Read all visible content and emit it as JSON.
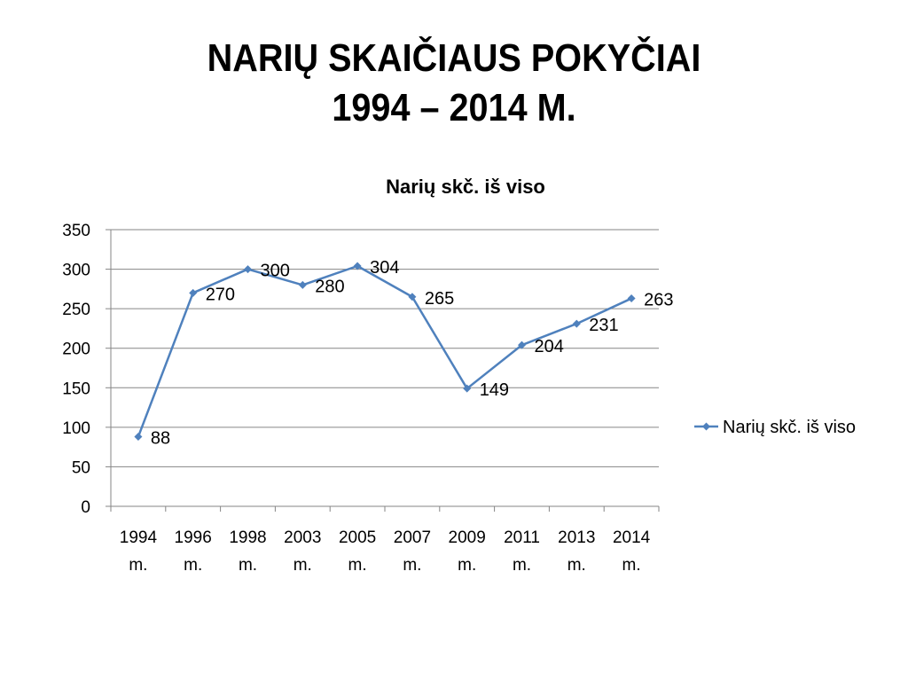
{
  "slide": {
    "title_line1": "NARIŲ SKAIČIAUS POKYČIAI",
    "title_line2": "1994 – 2014 M."
  },
  "chart_data": {
    "type": "line",
    "title": "Narių skč. iš viso",
    "categories": [
      [
        "1994",
        "m."
      ],
      [
        "1996",
        "m."
      ],
      [
        "1998",
        "m."
      ],
      [
        "2003",
        "m."
      ],
      [
        "2005",
        "m."
      ],
      [
        "2007",
        "m."
      ],
      [
        "2009",
        "m."
      ],
      [
        "2011",
        "m."
      ],
      [
        "2013",
        "m."
      ],
      [
        "2014",
        "m."
      ]
    ],
    "series": [
      {
        "name": "Narių skč. iš viso",
        "values": [
          88,
          270,
          300,
          280,
          304,
          265,
          149,
          204,
          231,
          263
        ]
      }
    ],
    "ylim": [
      0,
      350
    ],
    "yticks": [
      0,
      50,
      100,
      150,
      200,
      250,
      300,
      350
    ],
    "grid": true,
    "legend": "right",
    "colors": {
      "series": "#4F81BD",
      "grid": "#868686",
      "axis": "#868686"
    }
  }
}
